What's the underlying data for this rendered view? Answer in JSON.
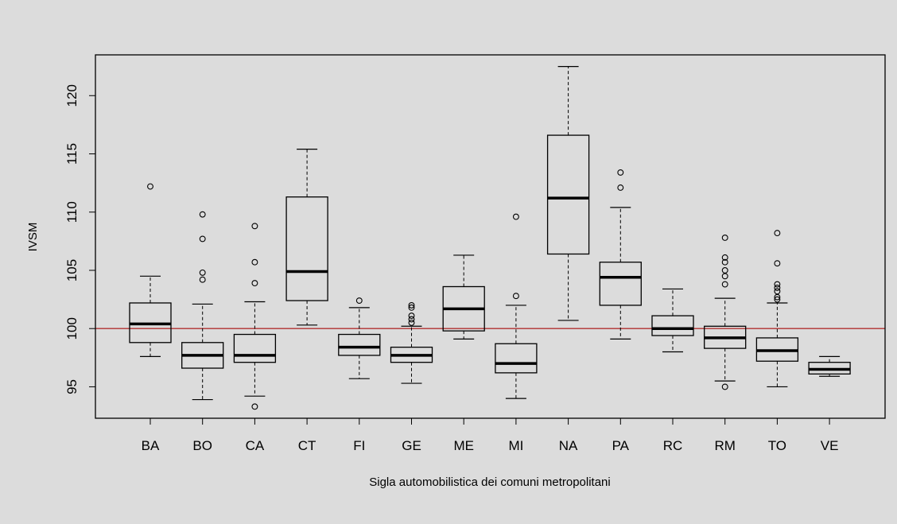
{
  "chart_data": {
    "type": "boxplot",
    "title": "",
    "xlabel": "Sigla automobilistica dei comuni metropolitani",
    "ylabel": "IVSM",
    "ylim": [
      92.3,
      123.5
    ],
    "yticks": [
      95,
      100,
      105,
      110,
      115,
      120
    ],
    "reference_line": {
      "y": 100,
      "color": "#b03030"
    },
    "grid": false,
    "categories": [
      "BA",
      "BO",
      "CA",
      "CT",
      "FI",
      "GE",
      "ME",
      "MI",
      "NA",
      "PA",
      "RC",
      "RM",
      "TO",
      "VE"
    ],
    "boxes": [
      {
        "label": "BA",
        "whisker_low": 97.6,
        "q1": 98.8,
        "median": 100.4,
        "q3": 102.2,
        "whisker_high": 104.5,
        "outliers": [
          112.2
        ]
      },
      {
        "label": "BO",
        "whisker_low": 93.9,
        "q1": 96.6,
        "median": 97.7,
        "q3": 98.8,
        "whisker_high": 102.1,
        "outliers": [
          104.2,
          104.8,
          107.7,
          109.8
        ]
      },
      {
        "label": "CA",
        "whisker_low": 94.2,
        "q1": 97.1,
        "median": 97.7,
        "q3": 99.5,
        "whisker_high": 102.3,
        "outliers": [
          93.3,
          103.9,
          105.7,
          108.8
        ]
      },
      {
        "label": "CT",
        "whisker_low": 100.3,
        "q1": 102.4,
        "median": 104.9,
        "q3": 111.3,
        "whisker_high": 115.4,
        "outliers": []
      },
      {
        "label": "FI",
        "whisker_low": 95.7,
        "q1": 97.7,
        "median": 98.4,
        "q3": 99.5,
        "whisker_high": 101.8,
        "outliers": [
          102.4
        ]
      },
      {
        "label": "GE",
        "whisker_low": 95.3,
        "q1": 97.1,
        "median": 97.7,
        "q3": 98.4,
        "whisker_high": 100.2,
        "outliers": [
          100.5,
          100.8,
          101.1,
          101.8,
          102.0
        ]
      },
      {
        "label": "ME",
        "whisker_low": 99.1,
        "q1": 99.8,
        "median": 101.7,
        "q3": 103.6,
        "whisker_high": 106.3,
        "outliers": []
      },
      {
        "label": "MI",
        "whisker_low": 94.0,
        "q1": 96.2,
        "median": 97.0,
        "q3": 98.7,
        "whisker_high": 102.0,
        "outliers": [
          102.8,
          109.6
        ]
      },
      {
        "label": "NA",
        "whisker_low": 100.7,
        "q1": 106.4,
        "median": 111.2,
        "q3": 116.6,
        "whisker_high": 122.5,
        "outliers": []
      },
      {
        "label": "PA",
        "whisker_low": 99.1,
        "q1": 102.0,
        "median": 104.4,
        "q3": 105.7,
        "whisker_high": 110.4,
        "outliers": [
          112.1,
          113.4
        ]
      },
      {
        "label": "RC",
        "whisker_low": 98.0,
        "q1": 99.4,
        "median": 100.0,
        "q3": 101.1,
        "whisker_high": 103.4,
        "outliers": []
      },
      {
        "label": "RM",
        "whisker_low": 95.5,
        "q1": 98.3,
        "median": 99.2,
        "q3": 100.2,
        "whisker_high": 102.6,
        "outliers": [
          95.0,
          103.8,
          104.5,
          105.0,
          105.7,
          106.1,
          107.8
        ]
      },
      {
        "label": "TO",
        "whisker_low": 95.0,
        "q1": 97.2,
        "median": 98.1,
        "q3": 99.2,
        "whisker_high": 102.2,
        "outliers": [
          102.5,
          102.7,
          103.2,
          103.5,
          103.8,
          105.6,
          108.2
        ]
      },
      {
        "label": "VE",
        "whisker_low": 95.9,
        "q1": 96.1,
        "median": 96.5,
        "q3": 97.1,
        "whisker_high": 97.6,
        "outliers": []
      }
    ]
  }
}
